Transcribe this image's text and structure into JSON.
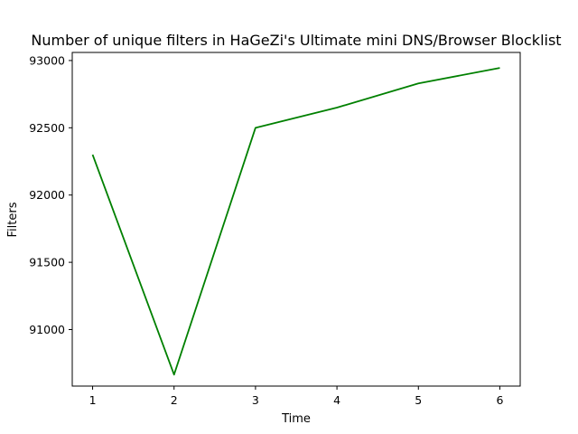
{
  "chart_data": {
    "type": "line",
    "title": "Number of unique filters in HaGeZi's Ultimate mini DNS/Browser Blocklist",
    "xlabel": "Time",
    "ylabel": "Filters",
    "x": [
      1,
      2,
      3,
      4,
      5,
      6
    ],
    "series": [
      {
        "values": [
          92300,
          90665,
          92500,
          92650,
          92830,
          92945
        ],
        "color": "#008000"
      }
    ],
    "xlim": [
      0.75,
      6.25
    ],
    "ylim": [
      90580,
      93060
    ],
    "xticks": [
      1,
      2,
      3,
      4,
      5,
      6
    ],
    "yticks": [
      91000,
      91500,
      92000,
      92500,
      93000
    ],
    "grid": false,
    "legend": "none"
  }
}
